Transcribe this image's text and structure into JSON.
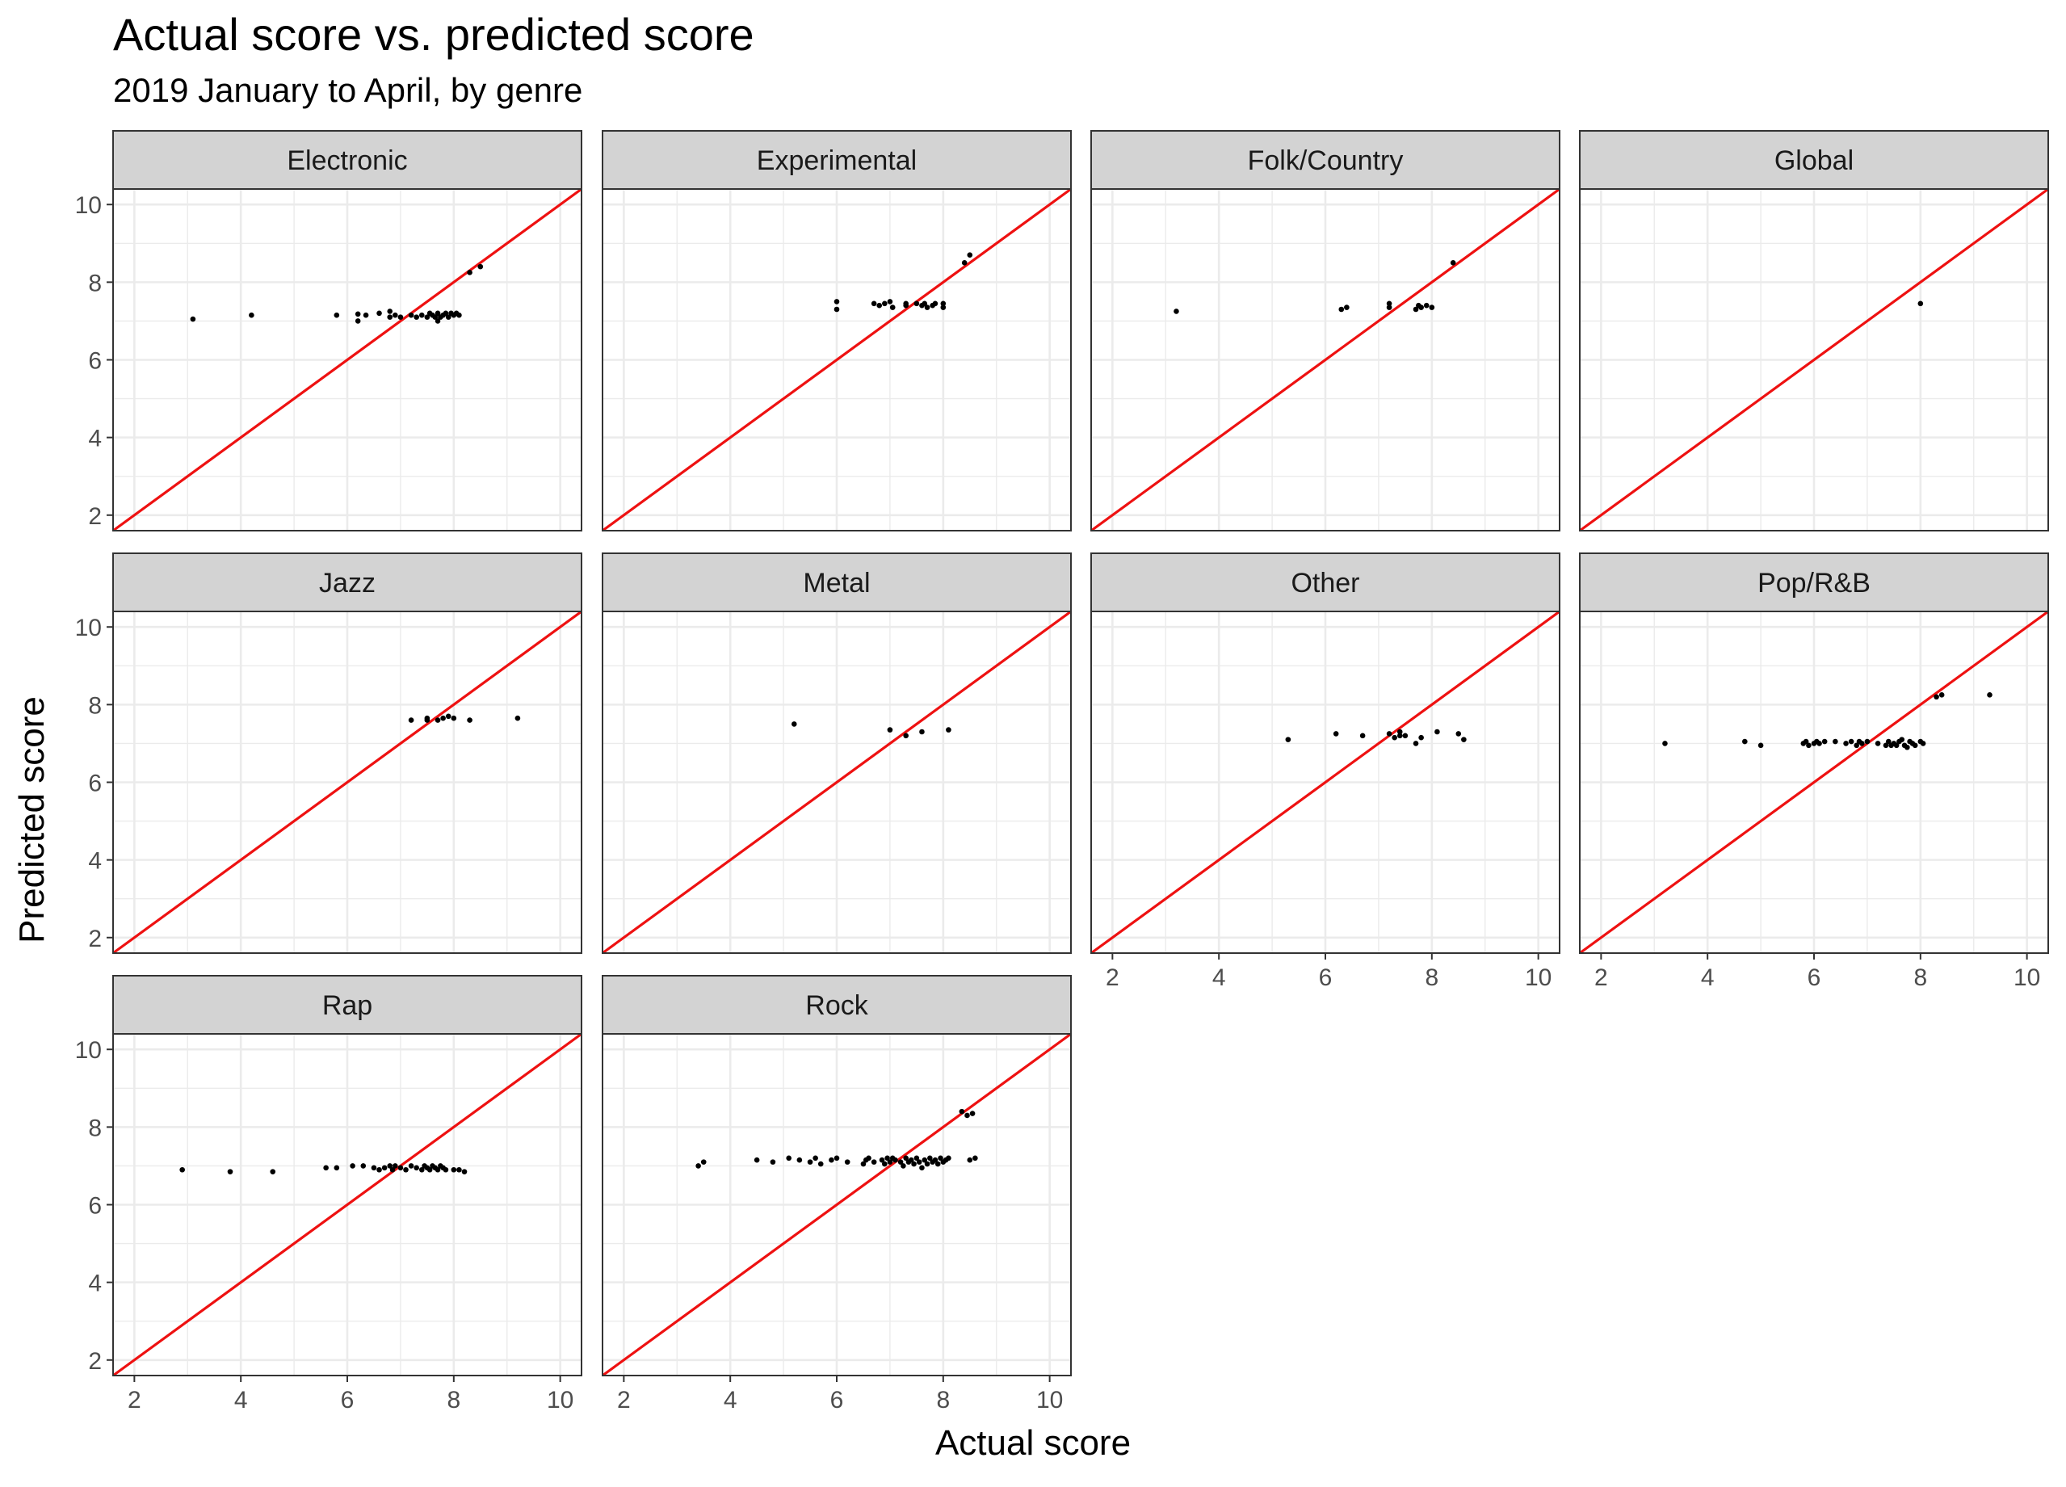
{
  "chart_data": {
    "type": "scatter",
    "title": "Actual score vs. predicted score",
    "subtitle": "2019 January to April, by genre",
    "xlabel": "Actual score",
    "ylabel": "Predicted score",
    "xlim": [
      1.6,
      10.4
    ],
    "ylim": [
      1.6,
      10.4
    ],
    "x_ticks": [
      2,
      4,
      6,
      8,
      10
    ],
    "y_ticks": [
      2,
      4,
      6,
      8,
      10
    ],
    "grid": true,
    "reference_line": "y = x",
    "colors": {
      "points": "#000000",
      "reference_line": "#ee1111",
      "strip": "#d3d3d3",
      "grid": "#ebebeb"
    },
    "panels": [
      {
        "label": "Electronic",
        "points": [
          [
            3.1,
            7.05
          ],
          [
            4.2,
            7.15
          ],
          [
            5.8,
            7.15
          ],
          [
            6.2,
            7.0
          ],
          [
            6.2,
            7.18
          ],
          [
            6.35,
            7.15
          ],
          [
            6.6,
            7.2
          ],
          [
            6.8,
            7.1
          ],
          [
            6.8,
            7.25
          ],
          [
            6.9,
            7.15
          ],
          [
            7.0,
            7.1
          ],
          [
            7.2,
            7.15
          ],
          [
            7.3,
            7.1
          ],
          [
            7.4,
            7.15
          ],
          [
            7.5,
            7.1
          ],
          [
            7.55,
            7.2
          ],
          [
            7.6,
            7.15
          ],
          [
            7.65,
            7.1
          ],
          [
            7.7,
            7.0
          ],
          [
            7.7,
            7.2
          ],
          [
            7.75,
            7.1
          ],
          [
            7.8,
            7.15
          ],
          [
            7.85,
            7.2
          ],
          [
            7.9,
            7.1
          ],
          [
            7.95,
            7.2
          ],
          [
            8.0,
            7.15
          ],
          [
            8.05,
            7.2
          ],
          [
            8.1,
            7.15
          ],
          [
            8.3,
            8.25
          ],
          [
            8.5,
            8.4
          ]
        ]
      },
      {
        "label": "Experimental",
        "points": [
          [
            6.0,
            7.3
          ],
          [
            6.0,
            7.5
          ],
          [
            6.7,
            7.45
          ],
          [
            6.8,
            7.4
          ],
          [
            6.9,
            7.45
          ],
          [
            7.0,
            7.5
          ],
          [
            7.05,
            7.35
          ],
          [
            7.3,
            7.45
          ],
          [
            7.3,
            7.4
          ],
          [
            7.5,
            7.45
          ],
          [
            7.6,
            7.4
          ],
          [
            7.65,
            7.45
          ],
          [
            7.7,
            7.35
          ],
          [
            7.8,
            7.4
          ],
          [
            7.85,
            7.45
          ],
          [
            8.0,
            7.35
          ],
          [
            8.0,
            7.45
          ],
          [
            8.4,
            8.5
          ],
          [
            8.5,
            8.7
          ]
        ]
      },
      {
        "label": "Folk/Country",
        "points": [
          [
            3.2,
            7.25
          ],
          [
            6.3,
            7.3
          ],
          [
            6.4,
            7.35
          ],
          [
            7.2,
            7.35
          ],
          [
            7.2,
            7.45
          ],
          [
            7.7,
            7.3
          ],
          [
            7.75,
            7.4
          ],
          [
            7.8,
            7.35
          ],
          [
            7.9,
            7.4
          ],
          [
            8.0,
            7.35
          ],
          [
            8.4,
            8.5
          ]
        ]
      },
      {
        "label": "Global",
        "points": [
          [
            8.0,
            7.45
          ]
        ]
      },
      {
        "label": "Jazz",
        "points": [
          [
            7.2,
            7.6
          ],
          [
            7.5,
            7.65
          ],
          [
            7.5,
            7.6
          ],
          [
            7.7,
            7.6
          ],
          [
            7.8,
            7.65
          ],
          [
            7.9,
            7.7
          ],
          [
            8.0,
            7.65
          ],
          [
            8.3,
            7.6
          ],
          [
            9.2,
            7.65
          ]
        ]
      },
      {
        "label": "Metal",
        "points": [
          [
            5.2,
            7.5
          ],
          [
            7.0,
            7.35
          ],
          [
            7.3,
            7.2
          ],
          [
            7.6,
            7.3
          ],
          [
            8.1,
            7.35
          ]
        ]
      },
      {
        "label": "Other",
        "points": [
          [
            5.3,
            7.1
          ],
          [
            6.2,
            7.25
          ],
          [
            6.7,
            7.2
          ],
          [
            7.2,
            7.25
          ],
          [
            7.3,
            7.15
          ],
          [
            7.4,
            7.2
          ],
          [
            7.4,
            7.3
          ],
          [
            7.5,
            7.2
          ],
          [
            7.7,
            7.0
          ],
          [
            7.8,
            7.15
          ],
          [
            8.1,
            7.3
          ],
          [
            8.5,
            7.25
          ],
          [
            8.6,
            7.1
          ]
        ]
      },
      {
        "label": "Pop/R&B",
        "points": [
          [
            3.2,
            7.0
          ],
          [
            4.7,
            7.05
          ],
          [
            5.0,
            6.95
          ],
          [
            5.8,
            7.0
          ],
          [
            5.85,
            7.05
          ],
          [
            5.9,
            6.95
          ],
          [
            6.0,
            7.0
          ],
          [
            6.05,
            7.05
          ],
          [
            6.1,
            7.0
          ],
          [
            6.2,
            7.05
          ],
          [
            6.4,
            7.05
          ],
          [
            6.6,
            7.0
          ],
          [
            6.7,
            7.05
          ],
          [
            6.8,
            6.95
          ],
          [
            6.85,
            7.05
          ],
          [
            6.9,
            7.0
          ],
          [
            7.0,
            7.05
          ],
          [
            7.2,
            7.0
          ],
          [
            7.35,
            6.95
          ],
          [
            7.4,
            7.05
          ],
          [
            7.45,
            6.95
          ],
          [
            7.5,
            7.0
          ],
          [
            7.55,
            6.95
          ],
          [
            7.6,
            7.05
          ],
          [
            7.65,
            7.1
          ],
          [
            7.7,
            6.95
          ],
          [
            7.75,
            6.9
          ],
          [
            7.8,
            7.05
          ],
          [
            7.85,
            7.0
          ],
          [
            7.9,
            6.95
          ],
          [
            8.0,
            7.05
          ],
          [
            8.05,
            7.0
          ],
          [
            8.3,
            8.2
          ],
          [
            8.4,
            8.25
          ],
          [
            9.3,
            8.25
          ]
        ]
      },
      {
        "label": "Rap",
        "points": [
          [
            2.9,
            6.9
          ],
          [
            3.8,
            6.85
          ],
          [
            4.6,
            6.85
          ],
          [
            5.6,
            6.95
          ],
          [
            5.8,
            6.95
          ],
          [
            6.1,
            7.0
          ],
          [
            6.3,
            7.0
          ],
          [
            6.5,
            6.95
          ],
          [
            6.6,
            6.9
          ],
          [
            6.7,
            6.95
          ],
          [
            6.8,
            7.0
          ],
          [
            6.85,
            6.9
          ],
          [
            6.9,
            7.0
          ],
          [
            7.0,
            6.95
          ],
          [
            7.1,
            6.9
          ],
          [
            7.2,
            7.0
          ],
          [
            7.3,
            6.95
          ],
          [
            7.4,
            6.9
          ],
          [
            7.45,
            7.0
          ],
          [
            7.5,
            6.95
          ],
          [
            7.55,
            6.9
          ],
          [
            7.6,
            7.0
          ],
          [
            7.65,
            6.95
          ],
          [
            7.7,
            6.9
          ],
          [
            7.75,
            7.0
          ],
          [
            7.8,
            6.95
          ],
          [
            7.85,
            6.9
          ],
          [
            8.0,
            6.9
          ],
          [
            8.1,
            6.9
          ],
          [
            8.2,
            6.85
          ]
        ]
      },
      {
        "label": "Rock",
        "points": [
          [
            3.4,
            7.0
          ],
          [
            3.5,
            7.1
          ],
          [
            4.5,
            7.15
          ],
          [
            4.8,
            7.1
          ],
          [
            5.1,
            7.2
          ],
          [
            5.3,
            7.15
          ],
          [
            5.5,
            7.1
          ],
          [
            5.6,
            7.2
          ],
          [
            5.7,
            7.05
          ],
          [
            5.9,
            7.15
          ],
          [
            6.0,
            7.2
          ],
          [
            6.2,
            7.1
          ],
          [
            6.5,
            7.05
          ],
          [
            6.55,
            7.15
          ],
          [
            6.6,
            7.2
          ],
          [
            6.7,
            7.1
          ],
          [
            6.85,
            7.15
          ],
          [
            6.9,
            7.05
          ],
          [
            6.95,
            7.2
          ],
          [
            7.0,
            7.1
          ],
          [
            7.05,
            7.2
          ],
          [
            7.1,
            7.15
          ],
          [
            7.2,
            7.1
          ],
          [
            7.25,
            7.0
          ],
          [
            7.3,
            7.2
          ],
          [
            7.35,
            7.1
          ],
          [
            7.4,
            7.15
          ],
          [
            7.45,
            7.05
          ],
          [
            7.5,
            7.2
          ],
          [
            7.55,
            7.1
          ],
          [
            7.6,
            6.95
          ],
          [
            7.65,
            7.15
          ],
          [
            7.7,
            7.05
          ],
          [
            7.75,
            7.2
          ],
          [
            7.8,
            7.1
          ],
          [
            7.85,
            7.15
          ],
          [
            7.9,
            7.05
          ],
          [
            7.95,
            7.2
          ],
          [
            8.0,
            7.1
          ],
          [
            8.05,
            7.15
          ],
          [
            8.1,
            7.2
          ],
          [
            8.35,
            8.4
          ],
          [
            8.45,
            8.3
          ],
          [
            8.55,
            8.35
          ],
          [
            8.5,
            7.15
          ],
          [
            8.6,
            7.2
          ]
        ]
      }
    ]
  }
}
